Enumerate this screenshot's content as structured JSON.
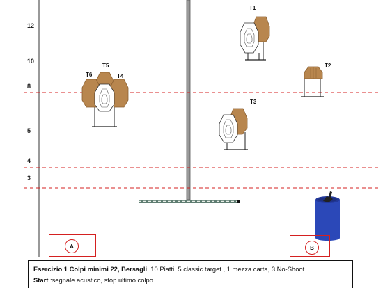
{
  "y_scale": [
    "12",
    "10",
    "8",
    "5",
    "4",
    "3"
  ],
  "targets": {
    "t1": "T1",
    "t2": "T2",
    "t3": "T3",
    "t4": "T4",
    "t5": "T5",
    "t6": "T6"
  },
  "positions": {
    "a": "A",
    "b": "B"
  },
  "brief": {
    "title": "Esercizio 1 Colpi minimi 22, Bersagli",
    "targets_text": ": 10 Piatti, 5 classic target , 1 mezza carta, 3  No-Shoot",
    "start_label": "Start",
    "start_text": " :segnale acustico, stop ultimo colpo."
  },
  "colors": {
    "steel": "#b8864e",
    "steel_dark": "#8a5f30",
    "no_shoot": "#ffffff",
    "fault_line": "#d42020",
    "barrel": "#2b48b8"
  }
}
